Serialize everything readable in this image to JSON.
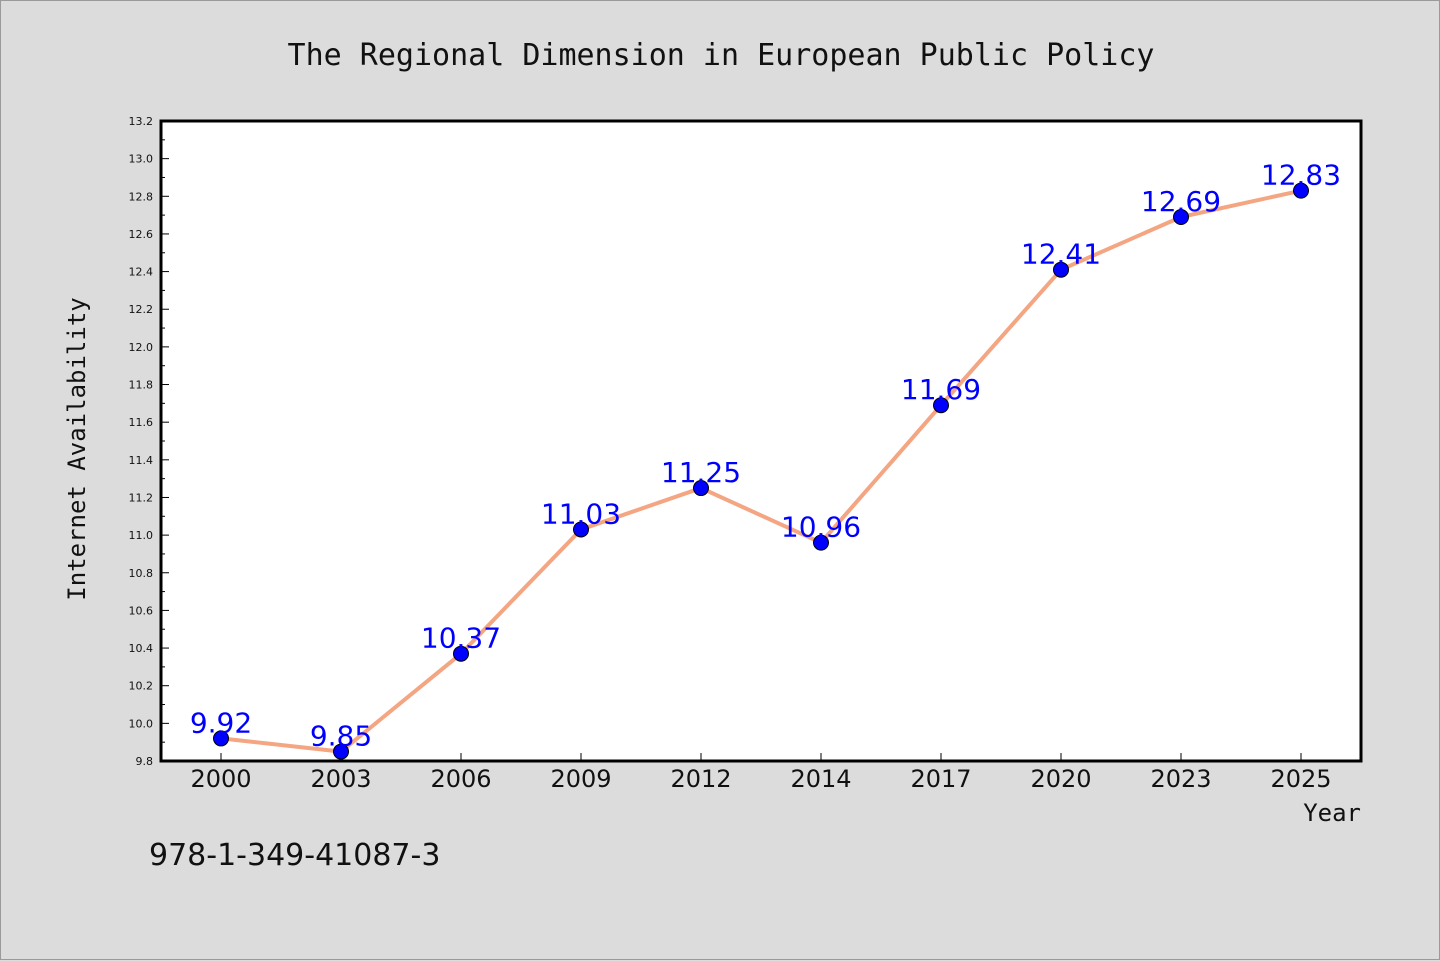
{
  "chart_data": {
    "type": "line",
    "title": "The Regional Dimension in European Public Policy",
    "xlabel": "Year",
    "ylabel": "Internet Availability",
    "categories": [
      "2000",
      "2003",
      "2006",
      "2009",
      "2012",
      "2014",
      "2017",
      "2020",
      "2023",
      "2025"
    ],
    "series": [
      {
        "values": [
          9.92,
          9.85,
          10.37,
          11.03,
          11.25,
          10.96,
          11.69,
          12.41,
          12.69,
          12.83
        ],
        "labels": [
          "9.92",
          "9.85",
          "10.37",
          "11.03",
          "11.25",
          "10.96",
          "11.69",
          "12.41",
          "12.69",
          "12.83"
        ],
        "line_color": "#f4a582",
        "marker_color": "#0000ff"
      }
    ],
    "ylim": [
      9.8,
      13.2
    ],
    "yticks": [
      "9.8",
      "10.0",
      "10.2",
      "10.4",
      "10.6",
      "10.8",
      "11.0",
      "11.2",
      "11.4",
      "11.6",
      "11.8",
      "12.0",
      "12.2",
      "12.4",
      "12.6",
      "12.8",
      "13.0",
      "13.2"
    ],
    "grid": false,
    "legend": "none",
    "background_color": "#dcdcdc",
    "plot_background": "#ffffff"
  },
  "footnote": "978-1-349-41087-3"
}
